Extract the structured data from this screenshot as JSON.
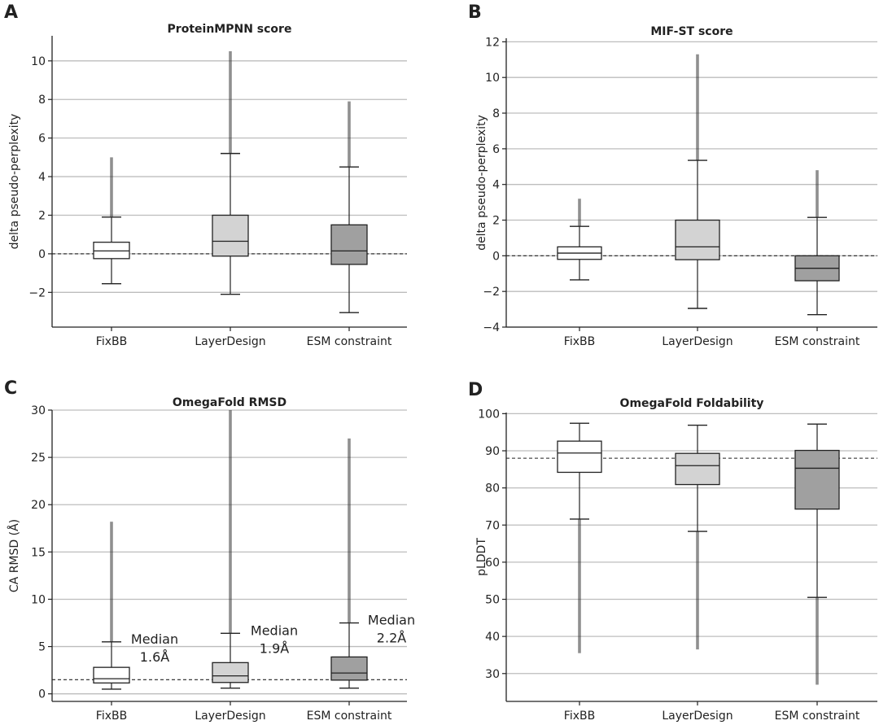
{
  "chart_data": [
    {
      "type": "box",
      "letter": "A",
      "title": "ProteinMPNN score",
      "ylabel": "delta pseudo-perplexity",
      "xlabel": "",
      "ylim": [
        -3.8,
        11.3
      ],
      "yticks": [
        -2,
        0,
        2,
        4,
        6,
        8,
        10
      ],
      "ytick_labels": [
        "−2",
        "0",
        "2",
        "4",
        "6",
        "8",
        "10"
      ],
      "grid": true,
      "reference_line": 0,
      "categories": [
        "FixBB",
        "LayerDesign",
        "ESM constraint"
      ],
      "colors": [
        "#ffffff",
        "#d3d3d3",
        "#a0a0a0"
      ],
      "boxes": [
        {
          "whisker_low": -1.55,
          "q1": -0.25,
          "median": 0.15,
          "q3": 0.6,
          "whisker_high": 1.9,
          "outlier_max": 5.0
        },
        {
          "whisker_low": -2.1,
          "q1": -0.12,
          "median": 0.65,
          "q3": 2.0,
          "whisker_high": 5.2,
          "outlier_max": 10.5
        },
        {
          "whisker_low": -3.05,
          "q1": -0.55,
          "median": 0.15,
          "q3": 1.5,
          "whisker_high": 4.5,
          "outlier_max": 7.9
        }
      ],
      "annotations": []
    },
    {
      "type": "box",
      "letter": "B",
      "title": "MIF-ST score",
      "ylabel": "delta pseudo-perplexity",
      "xlabel": "",
      "ylim": [
        -4,
        12.2
      ],
      "yticks": [
        -4,
        -2,
        0,
        2,
        4,
        6,
        8,
        10,
        12
      ],
      "ytick_labels": [
        "−4",
        "−2",
        "0",
        "2",
        "4",
        "6",
        "8",
        "10",
        "12"
      ],
      "grid": true,
      "reference_line": 0,
      "categories": [
        "FixBB",
        "LayerDesign",
        "ESM constraint"
      ],
      "colors": [
        "#ffffff",
        "#d3d3d3",
        "#a0a0a0"
      ],
      "boxes": [
        {
          "whisker_low": -1.35,
          "q1": -0.2,
          "median": 0.15,
          "q3": 0.5,
          "whisker_high": 1.65,
          "outlier_max": 3.2
        },
        {
          "whisker_low": -2.95,
          "q1": -0.22,
          "median": 0.5,
          "q3": 2.0,
          "whisker_high": 5.35,
          "outlier_max": 11.3
        },
        {
          "whisker_low": -3.3,
          "q1": -1.4,
          "median": -0.7,
          "q3": 0.0,
          "whisker_high": 2.15,
          "outlier_max": 4.8
        }
      ],
      "annotations": []
    },
    {
      "type": "box",
      "letter": "C",
      "title": "OmegaFold RMSD",
      "ylabel": "CA RMSD (Å)",
      "xlabel": "",
      "ylim": [
        -0.8,
        30
      ],
      "yticks": [
        0,
        5,
        10,
        15,
        20,
        25,
        30
      ],
      "ytick_labels": [
        "0",
        "5",
        "10",
        "15",
        "20",
        "25",
        "30"
      ],
      "grid": true,
      "reference_line": 1.5,
      "categories": [
        "FixBB",
        "LayerDesign",
        "ESM constraint"
      ],
      "colors": [
        "#ffffff",
        "#d3d3d3",
        "#a0a0a0"
      ],
      "boxes": [
        {
          "whisker_low": 0.5,
          "q1": 1.15,
          "median": 1.6,
          "q3": 2.8,
          "whisker_high": 5.5,
          "outlier_max": 18.2
        },
        {
          "whisker_low": 0.6,
          "q1": 1.2,
          "median": 1.9,
          "q3": 3.3,
          "whisker_high": 6.4,
          "outlier_max": 30.0
        },
        {
          "whisker_low": 0.6,
          "q1": 1.45,
          "median": 2.2,
          "q3": 3.9,
          "whisker_high": 7.5,
          "outlier_max": 27.0
        }
      ],
      "annotations": [
        {
          "line1": "Median",
          "line2": "1.6Å"
        },
        {
          "line1": "Median",
          "line2": "1.9Å"
        },
        {
          "line1": "Median",
          "line2": "2.2Å"
        }
      ]
    },
    {
      "type": "box",
      "letter": "D",
      "title": "OmegaFold Foldability",
      "ylabel": "pLDDT",
      "xlabel": "",
      "ylim": [
        22.5,
        100.3
      ],
      "yticks": [
        30,
        40,
        50,
        60,
        70,
        80,
        90,
        100
      ],
      "ytick_labels": [
        "30",
        "40",
        "50",
        "60",
        "70",
        "80",
        "90",
        "100"
      ],
      "grid": true,
      "reference_line": 88,
      "categories": [
        "FixBB",
        "LayerDesign",
        "ESM constraint"
      ],
      "colors": [
        "#ffffff",
        "#d3d3d3",
        "#a0a0a0"
      ],
      "boxes": [
        {
          "whisker_low": 71.6,
          "q1": 84.2,
          "median": 89.4,
          "q3": 92.6,
          "whisker_high": 97.4,
          "outlier_min": 35.5
        },
        {
          "whisker_low": 68.3,
          "q1": 80.9,
          "median": 86.0,
          "q3": 89.3,
          "whisker_high": 96.9,
          "outlier_min": 36.5
        },
        {
          "whisker_low": 50.5,
          "q1": 74.3,
          "median": 85.3,
          "q3": 90.1,
          "whisker_high": 97.2,
          "outlier_min": 27.0
        }
      ],
      "annotations": []
    }
  ]
}
